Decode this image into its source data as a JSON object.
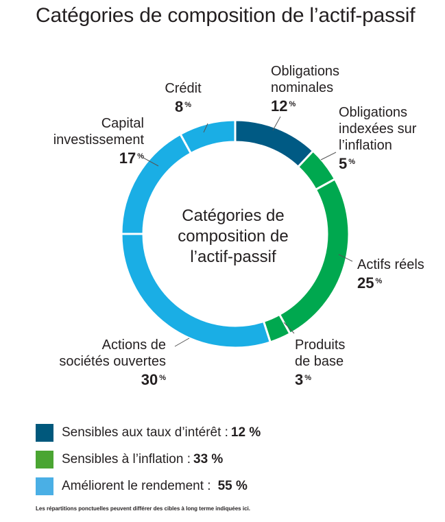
{
  "chart_data": {
    "type": "pie",
    "title": "Catégories de composition de l’actif-passif",
    "center_label": [
      "Catégories de",
      "composition de",
      "l’actif-passif"
    ],
    "unit": "%",
    "slices": [
      {
        "label": [
          "Obligations",
          "nominales"
        ],
        "value": 12,
        "color": "#005a84"
      },
      {
        "label": [
          "Obligations",
          "indexées sur",
          "l’inflation"
        ],
        "value": 5,
        "color": "#00a84f"
      },
      {
        "label": [
          "Actifs réels"
        ],
        "value": 25,
        "color": "#00a84f"
      },
      {
        "label": [
          "Produits",
          "de base"
        ],
        "value": 3,
        "color": "#00a84f"
      },
      {
        "label": [
          "Actions de",
          "sociétés ouvertes"
        ],
        "value": 30,
        "color": "#1aaee5"
      },
      {
        "label": [
          "Capital",
          "investissement"
        ],
        "value": 17,
        "color": "#1aaee5"
      },
      {
        "label": [
          "Crédit"
        ],
        "value": 8,
        "color": "#1aaee5"
      }
    ]
  },
  "legend": [
    {
      "label": "Sensibles aux taux d’intérêt :",
      "value": "12 %",
      "color": "#00587c"
    },
    {
      "label": "Sensibles à l’inflation :",
      "value": "33 %",
      "color": "#4aa532"
    },
    {
      "label": "Améliorent le rendement :",
      "value": "55 %",
      "color": "#4aafe5"
    }
  ],
  "footnote": "Les répartitions ponctuelles peuvent différer des cibles à long terme indiquées ici."
}
